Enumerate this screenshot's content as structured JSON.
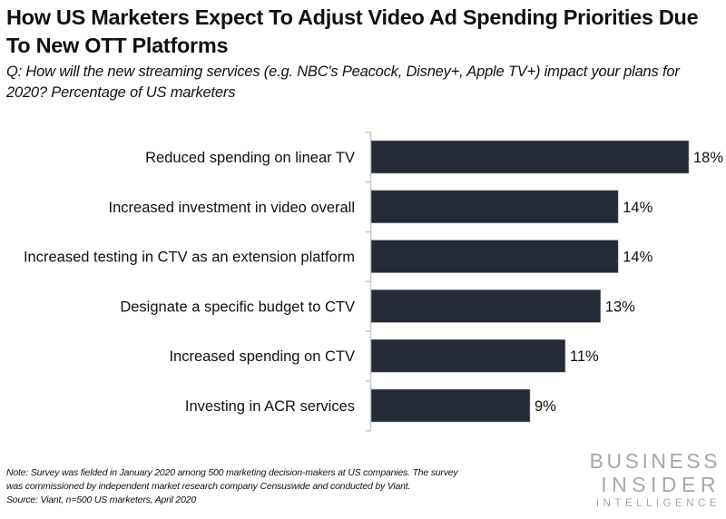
{
  "header": {
    "title": "How US Marketers Expect To Adjust Video Ad Spending Priorities Due To New OTT Platforms",
    "subtitle": "Q: How will the new streaming services (e.g. NBC's Peacock, Disney+, Apple TV+) impact your plans for 2020? Percentage of US marketers"
  },
  "footer": {
    "note_line1": "Note: Survey was fielded in January 2020 among 500 marketing decision-makers at US companies. The survey",
    "note_line2": "was commissioned by independent market research company Censuswide and conducted by Viant.",
    "source": "Source: Viant, n=500 US marketers, April 2020",
    "logo_line1": "BUSINESS",
    "logo_line2": "INSIDER",
    "logo_line3": "INTELLIGENCE"
  },
  "colors": {
    "bar": "#252b36",
    "axis": "#c8c8c8",
    "logo": "#a8a8a8"
  },
  "chart_data": {
    "type": "bar",
    "orientation": "horizontal",
    "title": "How US Marketers Expect To Adjust Video Ad Spending Priorities Due To New OTT Platforms",
    "subtitle": "Q: How will the new streaming services (e.g. NBC's Peacock, Disney+, Apple TV+) impact your plans for 2020? Percentage of US marketers",
    "categories": [
      "Reduced spending on linear TV",
      "Increased investment in video overall",
      "Increased testing in CTV as an extension platform",
      "Designate a specific budget to CTV",
      "Increased spending on CTV",
      "Investing in ACR services"
    ],
    "values": [
      18,
      14,
      14,
      13,
      11,
      9
    ],
    "value_labels": [
      "18%",
      "14%",
      "14%",
      "13%",
      "11%",
      "9%"
    ],
    "unit": "%",
    "xlabel": "",
    "ylabel": "",
    "xlim": [
      0,
      18
    ],
    "grid": false,
    "legend": "none"
  }
}
